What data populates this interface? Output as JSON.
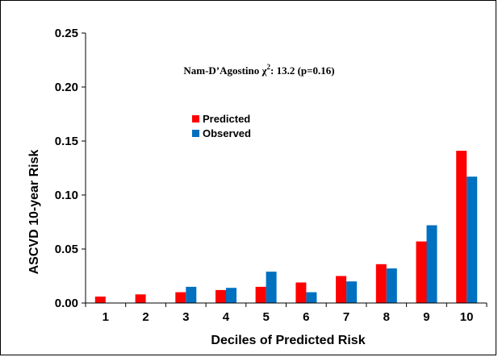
{
  "chart_data": {
    "type": "bar",
    "annotation": "Nam-D’Agostino χ²: 13.2 (p=0.16)",
    "annotation_parts": {
      "prefix": "Nam-D’Agostino χ",
      "superscript": "2",
      "suffix": ": 13.2 (p=0.16)"
    },
    "xlabel": "Deciles of Predicted Risk",
    "ylabel": "ASCVD 10-year Risk",
    "categories": [
      "1",
      "2",
      "3",
      "4",
      "5",
      "6",
      "7",
      "8",
      "9",
      "10"
    ],
    "ylim": [
      0,
      0.25
    ],
    "yticks": [
      "0.00",
      "0.05",
      "0.10",
      "0.15",
      "0.20",
      "0.25"
    ],
    "grid": false,
    "legend_position": "upper-left-center",
    "series": [
      {
        "name": "Predicted",
        "color": "#ff0000",
        "values": [
          0.006,
          0.008,
          0.01,
          0.012,
          0.015,
          0.019,
          0.025,
          0.036,
          0.057,
          0.141
        ]
      },
      {
        "name": "Observed",
        "color": "#0070c0",
        "values": [
          0.0,
          0.0,
          0.015,
          0.014,
          0.029,
          0.01,
          0.02,
          0.032,
          0.072,
          0.117
        ]
      }
    ]
  }
}
